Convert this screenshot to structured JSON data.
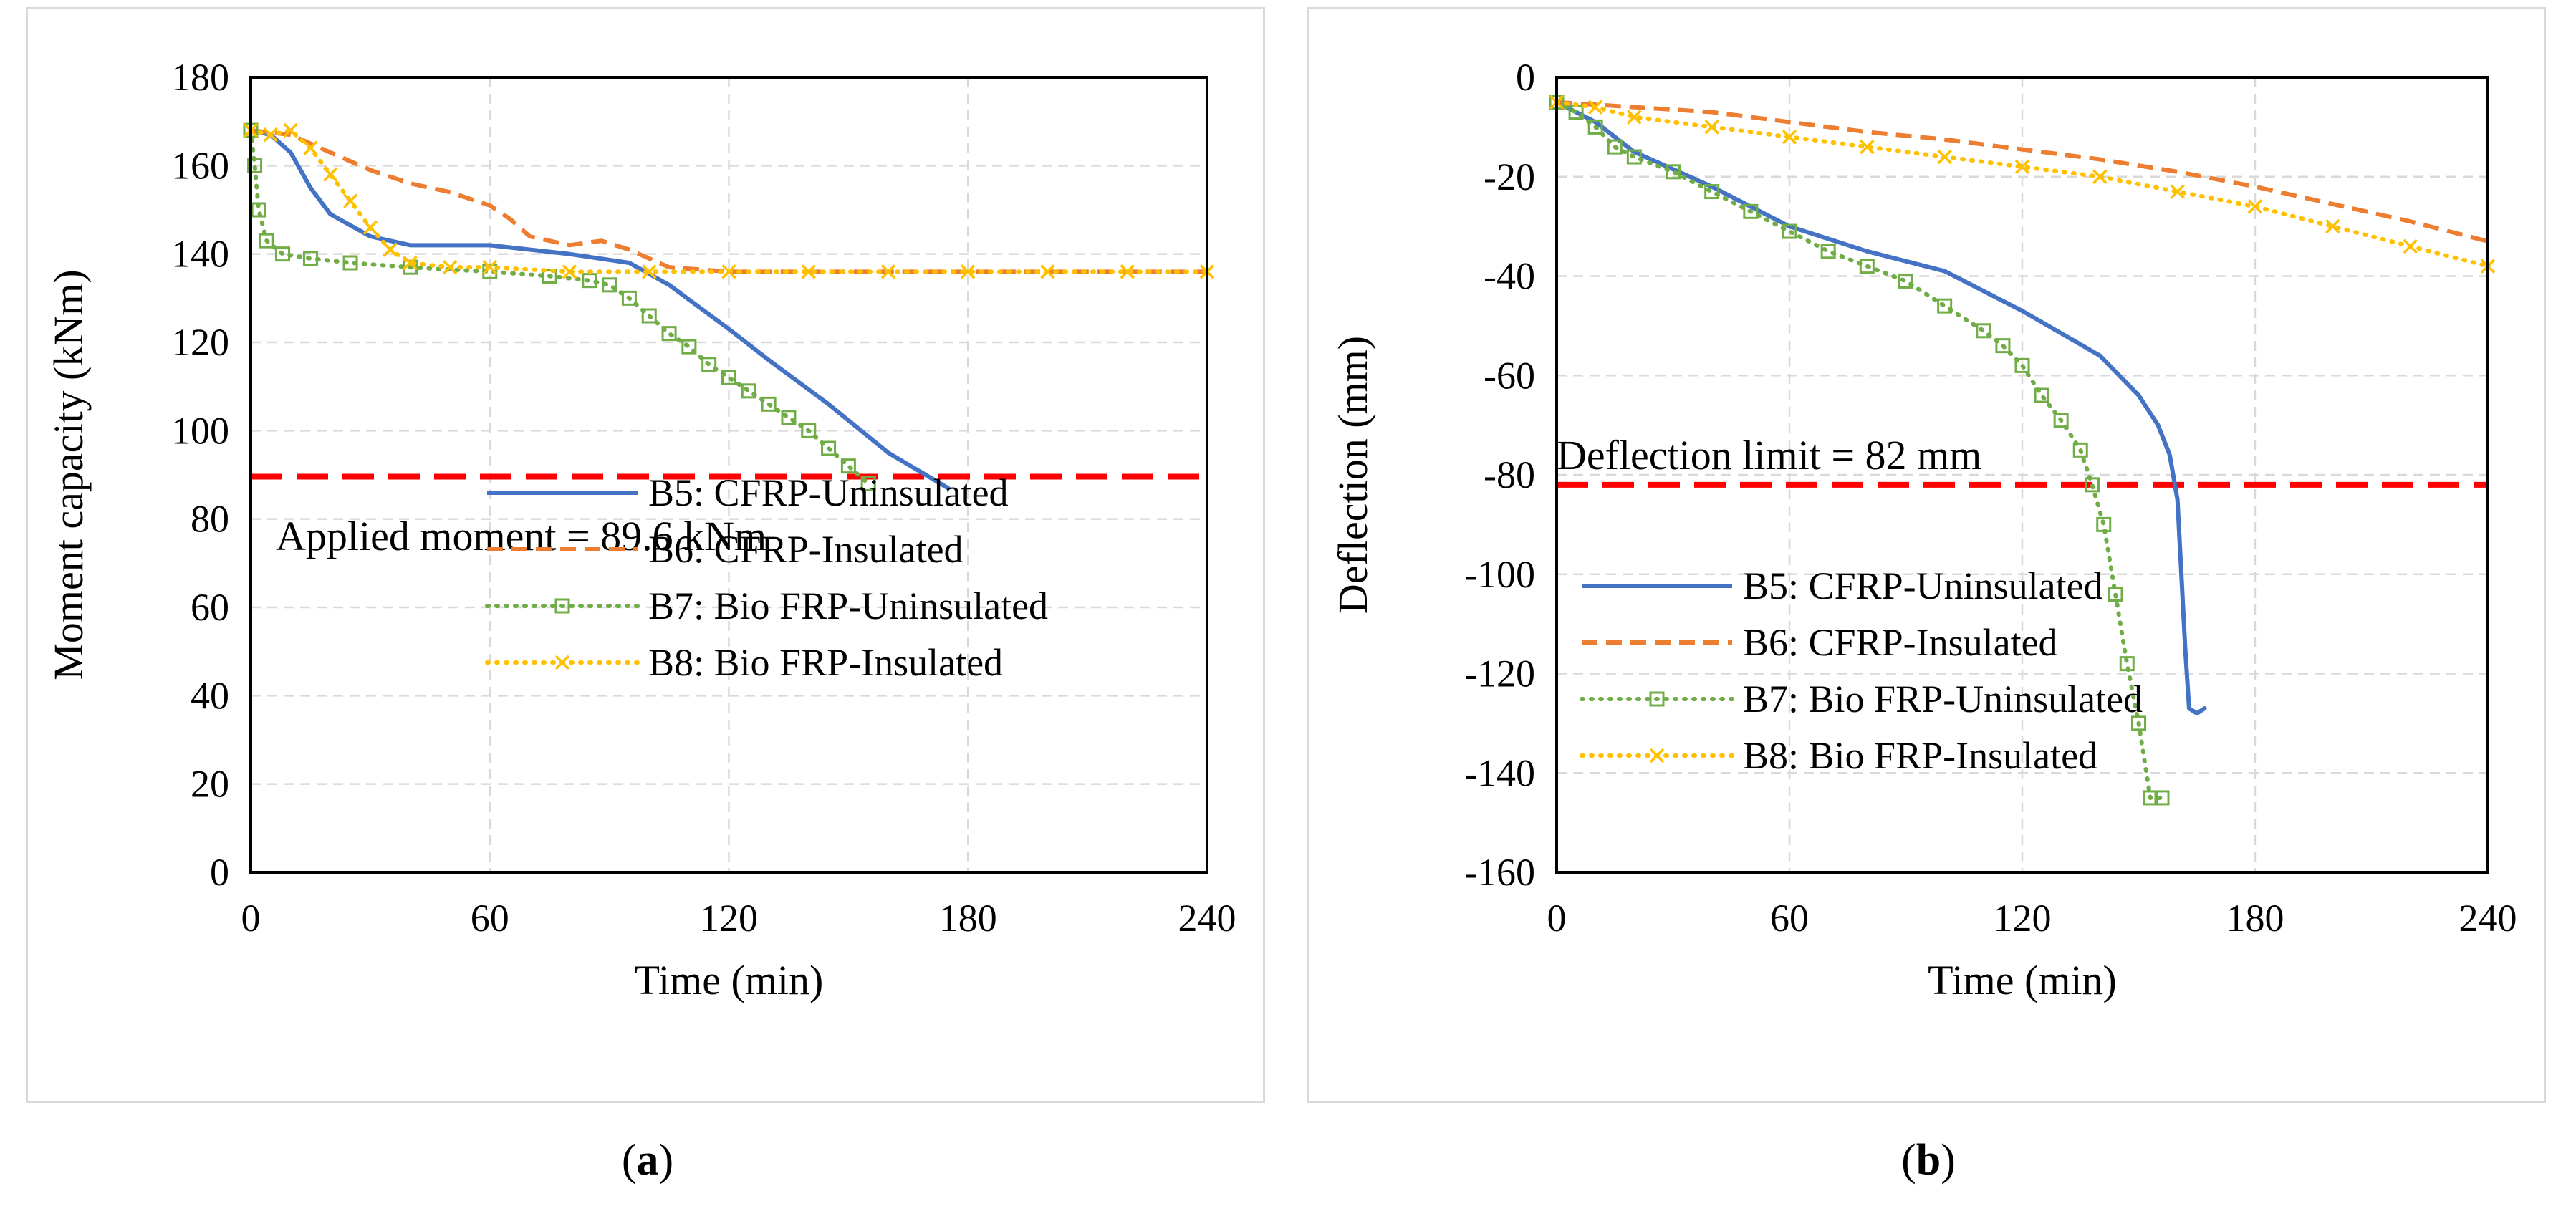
{
  "chart_data": [
    {
      "panel": "a",
      "type": "line",
      "caption_label": "a",
      "xlabel": "Time (min)",
      "ylabel": "Moment capacity (kNm)",
      "xlim": [
        0,
        240
      ],
      "ylim": [
        0,
        180
      ],
      "xticks": [
        0,
        60,
        120,
        180,
        240
      ],
      "yticks": [
        0,
        20,
        40,
        60,
        80,
        100,
        120,
        140,
        160,
        180
      ],
      "grid": true,
      "legend_position": "bottom-right",
      "reference_line": {
        "value": 89.6,
        "color": "#ff0000",
        "label": "Applied moment = 89.6 kNm"
      },
      "series": [
        {
          "name": "B5: CFRP-Uninsulated",
          "color": "#4472c4",
          "style": "solid",
          "marker": "none",
          "x": [
            0,
            5,
            10,
            15,
            20,
            30,
            40,
            60,
            80,
            95,
            105,
            120,
            130,
            145,
            160,
            175
          ],
          "y": [
            168,
            167,
            163,
            155,
            149,
            144,
            142,
            142,
            140,
            138,
            133,
            123,
            116,
            106,
            95,
            87
          ]
        },
        {
          "name": "B6: CFRP-Insulated",
          "color": "#ed7d31",
          "style": "dashed",
          "marker": "none",
          "x": [
            0,
            10,
            20,
            30,
            40,
            50,
            60,
            65,
            70,
            80,
            88,
            95,
            105,
            120,
            160,
            200,
            240
          ],
          "y": [
            168,
            167,
            163,
            159,
            156,
            154,
            151,
            148,
            144,
            142,
            143,
            141,
            137,
            136,
            136,
            136,
            136
          ]
        },
        {
          "name": "B7: Bio FRP-Uninsulated",
          "color": "#70ad47",
          "style": "dotted",
          "marker": "square",
          "x": [
            0,
            1,
            2,
            4,
            8,
            15,
            25,
            40,
            60,
            75,
            85,
            90,
            95,
            100,
            105,
            110,
            115,
            120,
            125,
            130,
            135,
            140,
            145,
            150,
            155
          ],
          "y": [
            168,
            160,
            150,
            143,
            140,
            139,
            138,
            137,
            136,
            135,
            134,
            133,
            130,
            126,
            122,
            119,
            115,
            112,
            109,
            106,
            103,
            100,
            96,
            92,
            88
          ]
        },
        {
          "name": "B8: Bio FRP-Insulated",
          "color": "#ffc000",
          "style": "dotted",
          "marker": "x",
          "x": [
            0,
            5,
            10,
            15,
            20,
            25,
            30,
            35,
            40,
            50,
            60,
            80,
            100,
            120,
            140,
            160,
            180,
            200,
            220,
            240
          ],
          "y": [
            168,
            167,
            168,
            164,
            158,
            152,
            146,
            141,
            138,
            137,
            137,
            136,
            136,
            136,
            136,
            136,
            136,
            136,
            136,
            136
          ]
        }
      ]
    },
    {
      "panel": "b",
      "type": "line",
      "caption_label": "b",
      "xlabel": "Time (min)",
      "ylabel": "Deflection (mm)",
      "xlim": [
        0,
        240
      ],
      "ylim": [
        -160,
        0
      ],
      "xticks": [
        0,
        60,
        120,
        180,
        240
      ],
      "yticks": [
        0,
        -20,
        -40,
        -60,
        -80,
        -100,
        -120,
        -140,
        -160
      ],
      "grid": true,
      "legend_position": "bottom-left",
      "reference_line": {
        "value": -82,
        "color": "#ff0000",
        "label": "Deflection limit = 82 mm"
      },
      "series": [
        {
          "name": "B5: CFRP-Uninsulated",
          "color": "#4472c4",
          "style": "solid",
          "marker": "none",
          "x": [
            0,
            10,
            20,
            40,
            60,
            80,
            100,
            120,
            140,
            150,
            155,
            158,
            160,
            161,
            162,
            163,
            165,
            167
          ],
          "y": [
            -5,
            -9,
            -15,
            -22,
            -30,
            -35,
            -39,
            -47,
            -56,
            -64,
            -70,
            -76,
            -85,
            -100,
            -115,
            -127,
            -128,
            -127
          ]
        },
        {
          "name": "B6: CFRP-Insulated",
          "color": "#ed7d31",
          "style": "dashed",
          "marker": "none",
          "x": [
            0,
            20,
            40,
            60,
            80,
            100,
            120,
            140,
            160,
            180,
            200,
            220,
            240
          ],
          "y": [
            -5,
            -6,
            -7,
            -9,
            -11,
            -12.5,
            -14.5,
            -16.5,
            -19,
            -22,
            -25.5,
            -29,
            -33
          ]
        },
        {
          "name": "B7: Bio FRP-Uninsulated",
          "color": "#70ad47",
          "style": "dotted",
          "marker": "square",
          "x": [
            0,
            5,
            10,
            15,
            20,
            30,
            40,
            50,
            60,
            70,
            80,
            90,
            100,
            110,
            115,
            120,
            125,
            130,
            135,
            138,
            141,
            144,
            147,
            150,
            153,
            156
          ],
          "y": [
            -5,
            -7,
            -10,
            -14,
            -16,
            -19,
            -23,
            -27,
            -31,
            -35,
            -38,
            -41,
            -46,
            -51,
            -54,
            -58,
            -64,
            -69,
            -75,
            -82,
            -90,
            -104,
            -118,
            -130,
            -145,
            -145
          ]
        },
        {
          "name": "B8: Bio FRP-Insulated",
          "color": "#ffc000",
          "style": "dotted",
          "marker": "x",
          "x": [
            0,
            10,
            20,
            40,
            60,
            80,
            100,
            120,
            140,
            160,
            180,
            200,
            220,
            240
          ],
          "y": [
            -5,
            -6,
            -8,
            -10,
            -12,
            -14,
            -16,
            -18,
            -20,
            -23,
            -26,
            -30,
            -34,
            -38
          ]
        }
      ]
    }
  ]
}
